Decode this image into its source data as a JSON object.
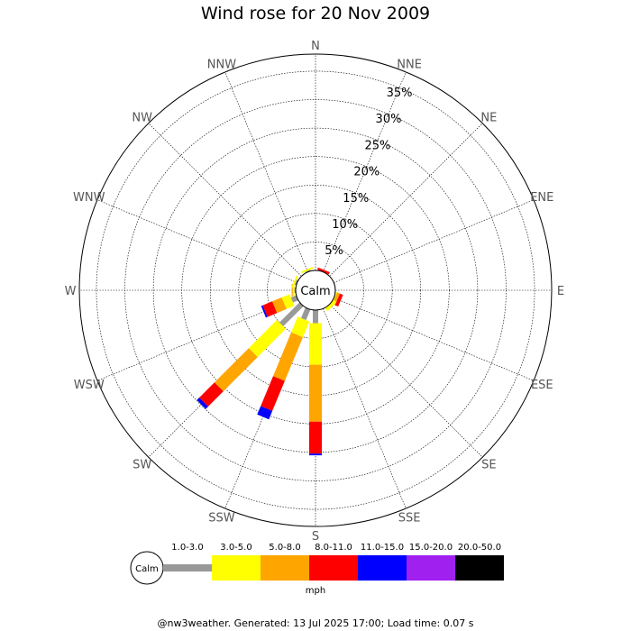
{
  "chart_data": {
    "type": "wind-rose",
    "title": "Wind rose for 20 Nov 2009",
    "directions": [
      "N",
      "NNE",
      "NE",
      "ENE",
      "E",
      "ESE",
      "SE",
      "SSE",
      "S",
      "SSW",
      "SW",
      "WSW",
      "W",
      "WNW",
      "NW",
      "NNW"
    ],
    "radial_ticks": [
      5,
      10,
      15,
      20,
      25,
      30,
      35
    ],
    "radial_tick_labels": [
      "5%",
      "10%",
      "15%",
      "20%",
      "25%",
      "30%",
      "35%"
    ],
    "radial_max": 38,
    "calm_label": "Calm",
    "speed_bins": [
      {
        "label": "1.0-3.0",
        "color": "#999999"
      },
      {
        "label": "3.0-5.0",
        "color": "#ffff00"
      },
      {
        "label": "5.0-8.0",
        "color": "#ffa500"
      },
      {
        "label": "8.0-11.0",
        "color": "#ff0000"
      },
      {
        "label": "11.0-15.0",
        "color": "#0000ff"
      },
      {
        "label": "15.0-20.0",
        "color": "#a020f0"
      },
      {
        "label": "20.0-50.0",
        "color": "#000000"
      }
    ],
    "units_label": "mph",
    "series": [
      {
        "direction": "NNE",
        "values": [
          0,
          0,
          0,
          0.4,
          0,
          0,
          0
        ]
      },
      {
        "direction": "ESE",
        "values": [
          0,
          0.2,
          0.5,
          0.6,
          0,
          0,
          0
        ]
      },
      {
        "direction": "SE",
        "values": [
          0,
          0.6,
          0,
          0,
          0,
          0,
          0
        ]
      },
      {
        "direction": "S",
        "values": [
          2.3,
          7.3,
          10.0,
          5.6,
          0.3,
          0,
          0
        ]
      },
      {
        "direction": "SSW",
        "values": [
          2.0,
          3.0,
          8.3,
          5.7,
          1.6,
          0,
          0
        ]
      },
      {
        "direction": "SW",
        "values": [
          5.0,
          7.0,
          8.5,
          3.8,
          0.6,
          0,
          0
        ]
      },
      {
        "direction": "WSW",
        "values": [
          1.0,
          1.5,
          1.8,
          1.8,
          0.3,
          0,
          0
        ]
      },
      {
        "direction": "W",
        "values": [
          0.2,
          0.3,
          0.2,
          0,
          0,
          0,
          0
        ]
      },
      {
        "direction": "WNW",
        "values": [
          0.3,
          0.3,
          0,
          0,
          0,
          0,
          0
        ]
      },
      {
        "direction": "NNW",
        "values": [
          0.2,
          0.3,
          0,
          0,
          0,
          0,
          0
        ]
      }
    ]
  },
  "footer": "@nw3weather. Generated: 13 Jul 2025 17:00; Load time: 0.07 s"
}
